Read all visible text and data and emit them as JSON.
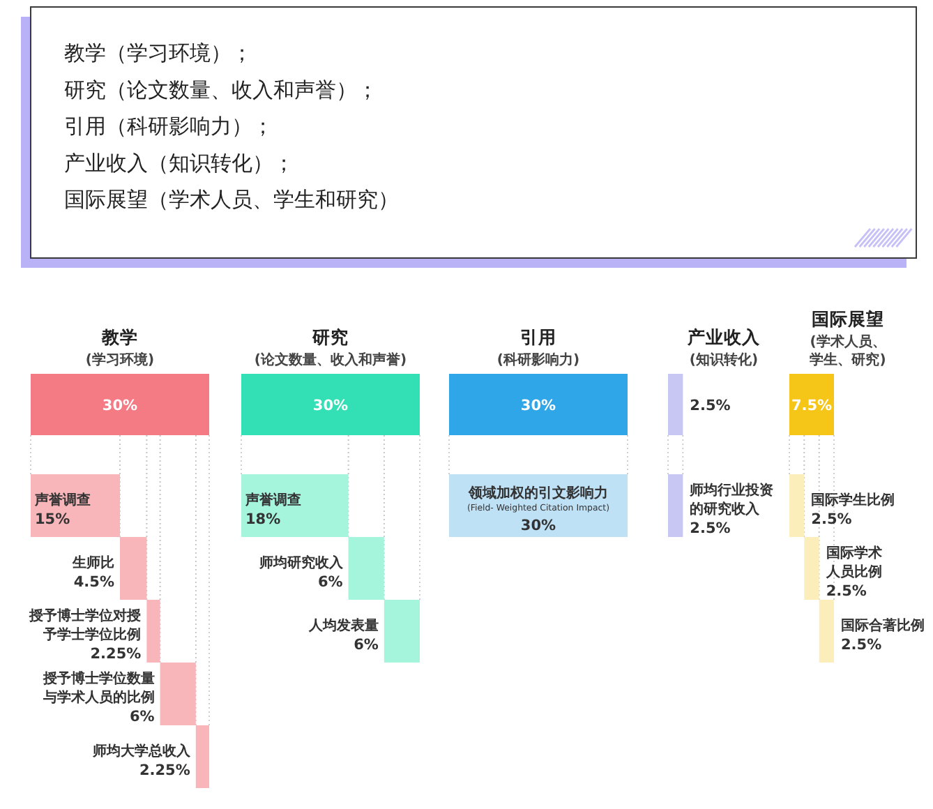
{
  "chart_data": [
    {
      "type": "other",
      "annotations": [
        "教学（学习环境）；",
        "研究（论文数量、收入和声誉）；",
        "引用（科研影响力）；",
        "产业收入（知识转化）；",
        "国际展望（学术人员、学生和研究）"
      ]
    },
    {
      "type": "other",
      "title": "教学",
      "subtitle": "(学习环境)",
      "categories": [
        null,
        "声誉调查",
        "生师比",
        "授予博士学位对授予学士学位比例",
        "授予博士学位数量与学术人员的比例",
        "师均大学总收入"
      ],
      "values": [
        30,
        15,
        4.5,
        2.25,
        6,
        2.25
      ],
      "colors": [
        "#f47a84",
        "#f8b5ba",
        "#f8b5ba",
        "#f8b5ba",
        "#f8b5ba",
        "#f8b5ba"
      ],
      "value_labels": [
        "30%",
        "15%",
        "4.5%",
        "2.25%",
        "6%",
        "2.25%"
      ]
    },
    {
      "type": "other",
      "title": "研究",
      "subtitle": "(论文数量、收入和声誉)",
      "categories": [
        null,
        "声誉调查",
        "师均研究收入",
        "人均发表量"
      ],
      "values": [
        30,
        18,
        6,
        6
      ],
      "colors": [
        "#33e0b5",
        "#a4f5dc",
        "#a4f5dc",
        "#a4f5dc"
      ],
      "value_labels": [
        "30%",
        "18%",
        "6%",
        "6%"
      ]
    },
    {
      "type": "other",
      "title": "引用",
      "subtitle": "(科研影响力)",
      "categories": [
        null,
        "领域加权的引文影响力\n(Field- Weighted Citation Impact)"
      ],
      "values": [
        30,
        30
      ],
      "colors": [
        "#2fa6e8",
        "#bfe1f6"
      ],
      "value_labels": [
        "30%",
        "30%"
      ]
    },
    {
      "type": "other",
      "title": "产业收入",
      "subtitle": "(知识转化)",
      "categories": [
        null,
        "师均行业投资的研究收入"
      ],
      "values": [
        2.5,
        2.5
      ],
      "colors": [
        "#c8c6f2",
        "#c8c6f2"
      ],
      "value_labels": [
        "2.5%",
        "2.5%"
      ]
    },
    {
      "type": "other",
      "title": "国际展望",
      "subtitle": "(学术人员、学生、研究)",
      "categories": [
        null,
        "国际学生比例",
        "国际学术人员比例",
        "国际合著比例"
      ],
      "values": [
        7.5,
        2.5,
        2.5,
        2.5
      ],
      "colors": [
        "#f5c518",
        "#fbeebb",
        "#fbeebb",
        "#fbeebb"
      ],
      "value_labels": [
        "7.5%",
        "2.5%",
        "2.5%",
        "2.5%"
      ]
    }
  ]
}
